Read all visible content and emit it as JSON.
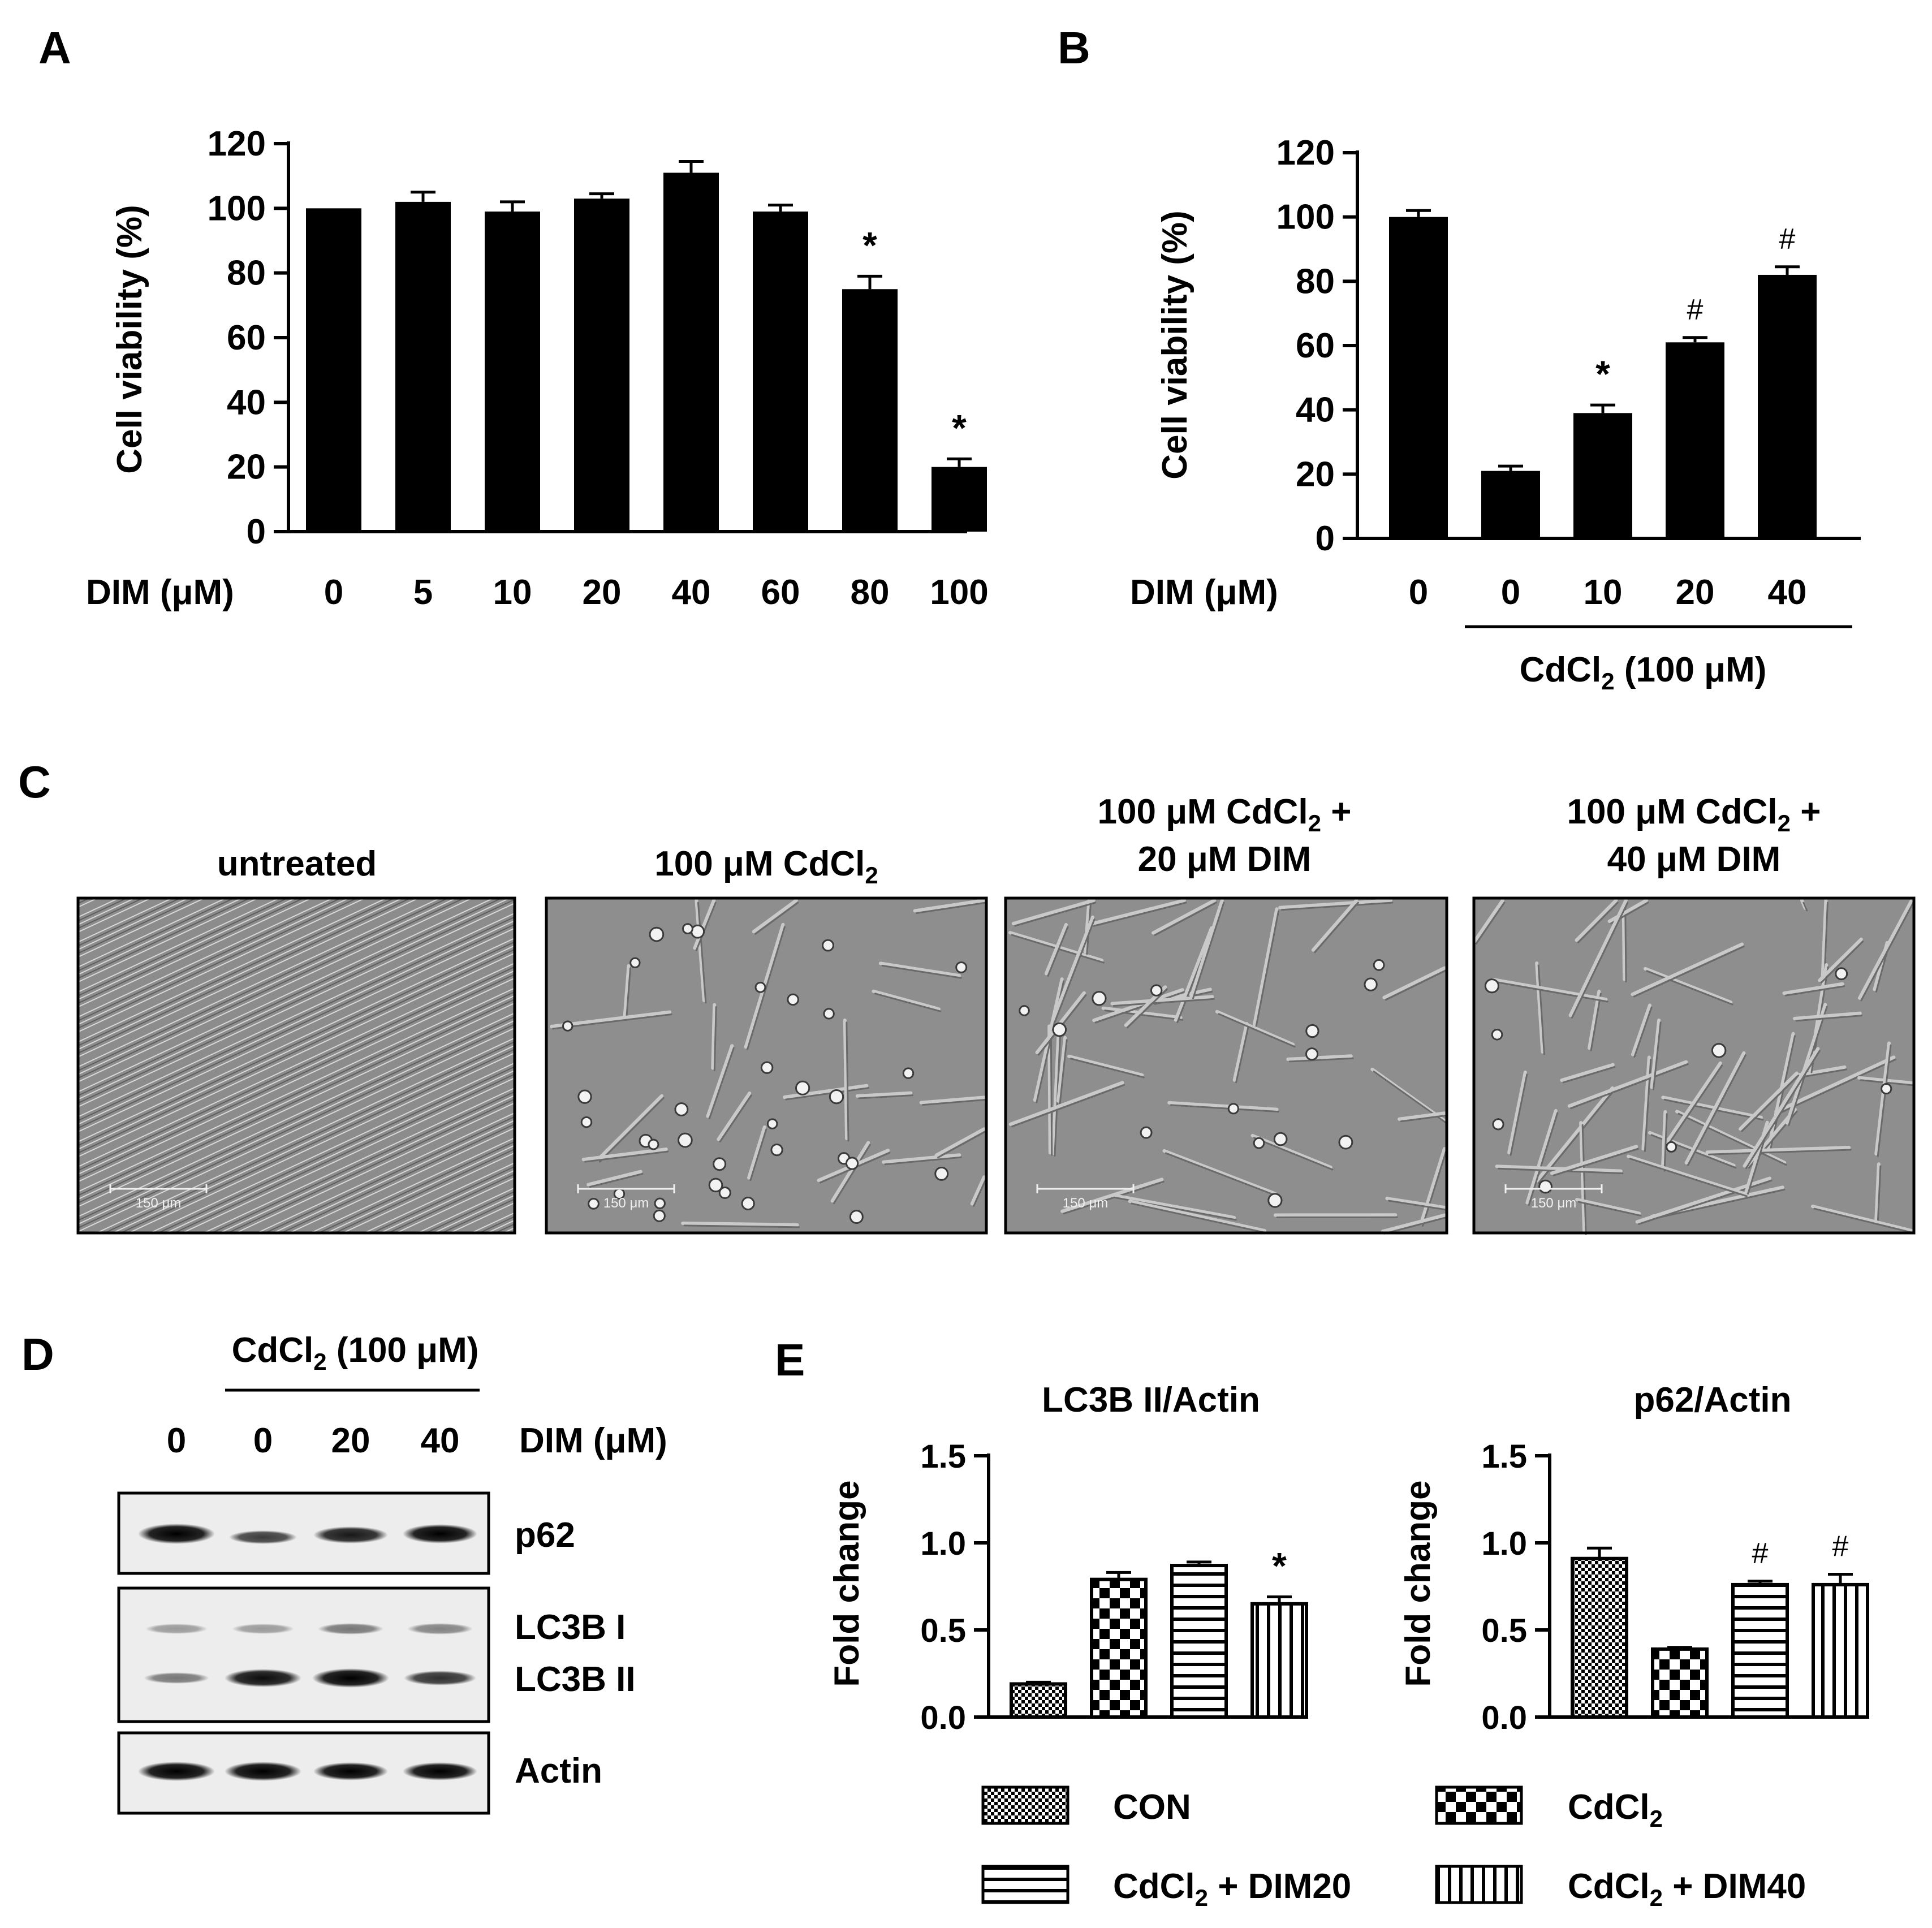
{
  "panel_letters": {
    "A": "A",
    "B": "B",
    "C": "C",
    "D": "D",
    "E": "E"
  },
  "panel_a": {
    "ylabel": "Cell viability (%)",
    "xrow_label": "DIM (μM)",
    "significance": [
      "",
      "",
      "",
      "",
      "",
      "",
      "*",
      "*"
    ]
  },
  "panel_b": {
    "ylabel": "Cell viability (%)",
    "xrow_label": "DIM (μM)",
    "group_label": {
      "pre": "CdCl",
      "sub": "2",
      "post": " (100 μM)"
    },
    "significance": [
      "",
      "",
      "*",
      "#",
      "#"
    ]
  },
  "panel_c": {
    "titles": [
      {
        "line1_pre": "untreated",
        "line1_sub": "",
        "line1_post": "",
        "line2": ""
      },
      {
        "line1_pre": "100 μM CdCl",
        "line1_sub": "2",
        "line1_post": "",
        "line2": ""
      },
      {
        "line1_pre": "100 μM CdCl",
        "line1_sub": "2",
        "line1_post": " +",
        "line2": "20 μM DIM"
      },
      {
        "line1_pre": "100 μM CdCl",
        "line1_sub": "2",
        "line1_post": " +",
        "line2": "40 μM DIM"
      }
    ],
    "scale_bar": "150 μm",
    "image_style": "grayscale phase-contrast micrographs"
  },
  "panel_d": {
    "group_label": {
      "pre": "CdCl",
      "sub": "2",
      "post": " (100 μM)"
    },
    "lanes": [
      "0",
      "0",
      "20",
      "40"
    ],
    "lane_header": "DIM (μM)",
    "bands": {
      "p62": "p62",
      "lc3b_i": "LC3B I",
      "lc3b_ii": "LC3B II",
      "actin": "Actin"
    }
  },
  "panel_e": {
    "ylabel": "Fold change",
    "legend": [
      {
        "pre": "CON",
        "sub": "",
        "post": "",
        "pattern": "dots"
      },
      {
        "pre": "CdCl",
        "sub": "2",
        "post": "",
        "pattern": "checker"
      },
      {
        "pre": "CdCl",
        "sub": "2",
        "post": " + DIM20",
        "pattern": "hlines"
      },
      {
        "pre": "CdCl",
        "sub": "2",
        "post": " + DIM40",
        "pattern": "vlines"
      }
    ]
  },
  "chart_data": [
    {
      "type": "bar",
      "panel": "A",
      "categories": [
        "0",
        "5",
        "10",
        "20",
        "40",
        "60",
        "80",
        "100"
      ],
      "values": [
        100,
        102,
        99,
        103,
        111,
        99,
        75,
        20
      ],
      "errors": [
        0,
        3,
        3,
        1.5,
        3.5,
        2,
        4,
        2.5
      ],
      "ylabel": "Cell viability (%)",
      "xlabel": "DIM (μM)",
      "ylim": [
        0,
        120
      ],
      "yticks": [
        0,
        20,
        40,
        60,
        80,
        100,
        120
      ],
      "color": "#000000"
    },
    {
      "type": "bar",
      "panel": "B",
      "categories": [
        "0",
        "0",
        "10",
        "20",
        "40"
      ],
      "values": [
        100,
        21,
        39,
        61,
        82
      ],
      "errors": [
        2,
        1.5,
        2.5,
        1.5,
        2.5
      ],
      "ylabel": "Cell viability (%)",
      "xlabel": "DIM (μM)",
      "ylim": [
        0,
        120
      ],
      "yticks": [
        0,
        20,
        40,
        60,
        80,
        100,
        120
      ],
      "color": "#000000"
    },
    {
      "type": "bar",
      "panel": "E-left",
      "title": "LC3B II/Actin",
      "categories": [
        "CON",
        "CdCl2",
        "CdCl2 + DIM20",
        "CdCl2 + DIM40"
      ],
      "values": [
        0.19,
        0.79,
        0.87,
        0.65
      ],
      "errors": [
        0.01,
        0.04,
        0.02,
        0.04
      ],
      "significance": [
        "",
        "",
        "",
        "*"
      ],
      "ylabel": "Fold change",
      "ylim": [
        0,
        1.5
      ],
      "yticks": [
        "0.0",
        "0.5",
        "1.0",
        "1.5"
      ]
    },
    {
      "type": "bar",
      "panel": "E-right",
      "title": "p62/Actin",
      "categories": [
        "CON",
        "CdCl2",
        "CdCl2 + DIM20",
        "CdCl2 + DIM40"
      ],
      "values": [
        0.91,
        0.39,
        0.76,
        0.76
      ],
      "errors": [
        0.06,
        0.01,
        0.02,
        0.06
      ],
      "significance": [
        "",
        "",
        "#",
        "#"
      ],
      "ylabel": "Fold change",
      "ylim": [
        0,
        1.5
      ],
      "yticks": [
        "0.0",
        "0.5",
        "1.0",
        "1.5"
      ]
    }
  ]
}
